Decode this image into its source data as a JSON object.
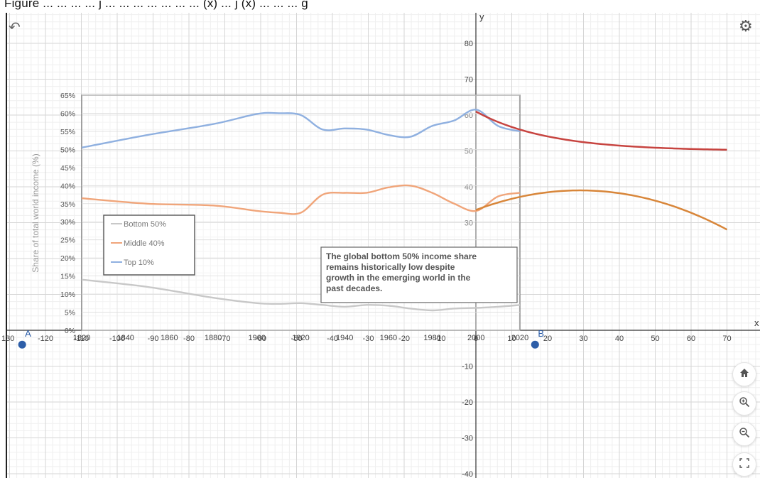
{
  "topbar": {
    "text": "Figure ... ... ... ... j ... ... ... ... ... ... ... (x) ... j (x) ... ... ... g"
  },
  "calculator": {
    "axis_labels": {
      "x": "x",
      "y": "y"
    },
    "x_ticks": [
      "130",
      "-120",
      "-110",
      "-100",
      "-90",
      "-80",
      "-70",
      "-60",
      "-50",
      "-40",
      "-30",
      "-20",
      "-10",
      "0",
      "10",
      "20",
      "30",
      "40",
      "50",
      "60",
      "70"
    ],
    "y_ticks": [
      "80",
      "70",
      "60",
      "50",
      "40",
      "30",
      "20",
      "10",
      "-10",
      "-20",
      "-30",
      "-40"
    ],
    "points": [
      {
        "label": "A",
        "color": "#2d5ea8"
      },
      {
        "label": "B",
        "color": "#2d5ea8"
      }
    ],
    "curve_colors": {
      "red": "#c74440",
      "orange": "#d8863a"
    }
  },
  "image_overlay": {
    "ylabel": "Share of total world income (%)",
    "y_ticks": [
      "65%",
      "60%",
      "55%",
      "50%",
      "45%",
      "40%",
      "35%",
      "30%",
      "25%",
      "20%",
      "15%",
      "10%",
      "5%",
      "0%"
    ],
    "x_ticks": [
      "1820",
      "1840",
      "1860",
      "1880",
      "1900",
      "1920",
      "1940",
      "1960",
      "1980",
      "2000",
      "2020"
    ],
    "legend": [
      "Bottom 50%",
      "Middle 40%",
      "Top 10%"
    ],
    "annotation": [
      "The global bottom 50% income share",
      "remains historically low despite",
      "growth in the emerging world in the",
      "past decades."
    ]
  },
  "chart_data": {
    "type": "line",
    "title": "",
    "ylabel": "Share of total world income (%)",
    "xlabel": "",
    "xlim": [
      1820,
      2020
    ],
    "ylim": [
      0,
      65
    ],
    "x": [
      1820,
      1850,
      1880,
      1900,
      1910,
      1920,
      1930,
      1940,
      1950,
      1960,
      1970,
      1980,
      1990,
      2000,
      2010,
      2020
    ],
    "series": [
      {
        "name": "Bottom 50%",
        "color": "#c8c8c8",
        "values": [
          14,
          12,
          9,
          7.5,
          7.3,
          7.5,
          7,
          6.5,
          7,
          6.8,
          6,
          5.5,
          6,
          6.2,
          6.5,
          7
        ]
      },
      {
        "name": "Middle 40%",
        "color": "#f0a57a",
        "values": [
          36.5,
          35,
          34.5,
          33,
          32.5,
          32.5,
          37.5,
          38,
          38,
          39.5,
          40,
          38,
          35,
          33,
          37,
          38
        ]
      },
      {
        "name": "Top 10%",
        "color": "#8fb0e0",
        "values": [
          50.5,
          54,
          57,
          59.8,
          60,
          59.5,
          55.5,
          55.8,
          55.5,
          54,
          53.5,
          56.5,
          58,
          61,
          56.5,
          55
        ]
      }
    ],
    "legend_position": "center-left",
    "annotation": "The global bottom 50% income share remains historically low despite growth in the emerging world in the past decades."
  },
  "controls": {
    "home": {
      "icon": "home-icon"
    },
    "zoom_in": {
      "icon": "zoom-in-icon"
    },
    "zoom_out": {
      "icon": "zoom-out-icon"
    },
    "fullscreen": {
      "icon": "fullscreen-icon"
    }
  }
}
